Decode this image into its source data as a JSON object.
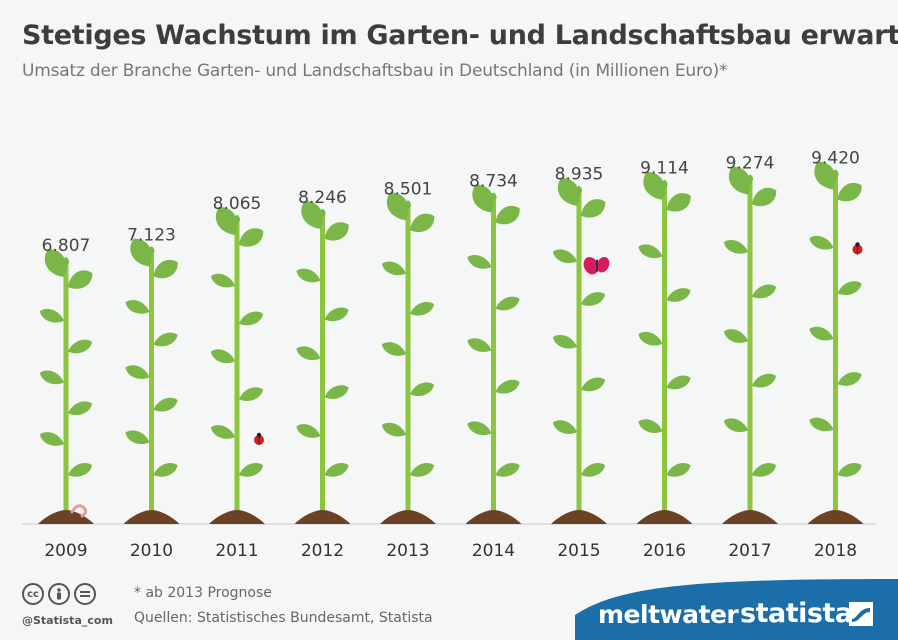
{
  "title": "Stetiges Wachstum im Garten- und Landschaftsbau erwartet",
  "subtitle": "Umsatz der Branche Garten- und Landschaftsbau in Deutschland (in Millionen Euro)*",
  "chart_data": {
    "type": "bar",
    "title": "Stetiges Wachstum im Garten- und Landschaftsbau erwartet",
    "subtitle": "Umsatz der Branche Garten- und Landschaftsbau in Deutschland (in Millionen Euro)*",
    "categories": [
      "2009",
      "2010",
      "2011",
      "2012",
      "2013",
      "2014",
      "2015",
      "2016",
      "2017",
      "2018"
    ],
    "values": [
      6807,
      7123,
      8065,
      8246,
      8501,
      8734,
      8935,
      9114,
      9274,
      9420
    ],
    "value_labels": [
      "6.807",
      "7.123",
      "8.065",
      "8.246",
      "8.501",
      "8.734",
      "8.935",
      "9.114",
      "9.274",
      "9.420"
    ],
    "xlabel": "",
    "ylabel": "",
    "grid": false,
    "mark_style": "plant stems",
    "colors": {
      "stem": "#8cc63f",
      "leaf": "#7ab648",
      "soil": "#6b4226",
      "ladybug": "#cc2222",
      "butterfly": "#d81b60"
    }
  },
  "footer": {
    "note": "* ab 2013 Prognose",
    "sources": "Quellen: Statistisches Bundesamt, Statista",
    "handle": "@Statista_com",
    "partner": "meltwater",
    "brand": "statista",
    "band_color": "#1b6ea8",
    "cc_icons": [
      "cc-icon",
      "by-icon",
      "nd-icon"
    ]
  }
}
